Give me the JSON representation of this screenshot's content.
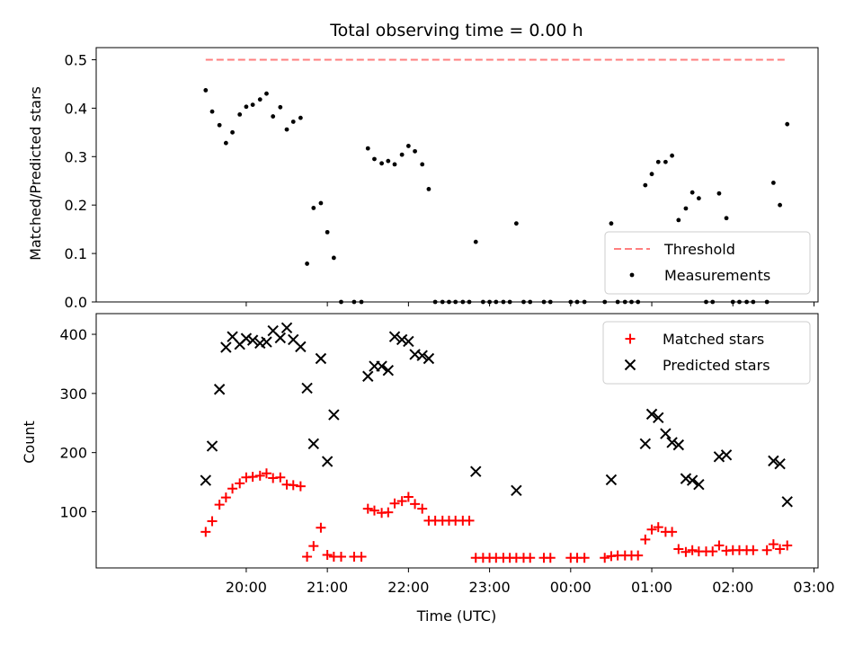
{
  "chart_data": [
    {
      "type": "scatter",
      "title": "Total observing time = 0.00 h",
      "xlabel": "",
      "ylabel": "Matched/Predicted stars",
      "x_unit": "hours after 19:00 UTC",
      "xlim": [
        -0.85,
        8.05
      ],
      "ylim": [
        0,
        0.525
      ],
      "yticks": [
        0.0,
        0.1,
        0.2,
        0.3,
        0.4,
        0.5
      ],
      "ytick_labels": [
        "0.0",
        "0.1",
        "0.2",
        "0.3",
        "0.4",
        "0.5"
      ],
      "legend": {
        "position": "lower-right",
        "entries": [
          "Threshold",
          "Measurements"
        ]
      },
      "threshold": {
        "name": "Threshold",
        "y": 0.5,
        "x_range": [
          0.5,
          7.67
        ],
        "color": "#ff7f7f"
      },
      "series": [
        {
          "name": "Measurements",
          "color": "#000000",
          "points": [
            [
              0.5,
              0.437
            ],
            [
              0.58,
              0.393
            ],
            [
              0.67,
              0.365
            ],
            [
              0.75,
              0.328
            ],
            [
              0.83,
              0.35
            ],
            [
              0.92,
              0.387
            ],
            [
              1.0,
              0.403
            ],
            [
              1.08,
              0.407
            ],
            [
              1.17,
              0.418
            ],
            [
              1.25,
              0.43
            ],
            [
              1.33,
              0.383
            ],
            [
              1.42,
              0.402
            ],
            [
              1.5,
              0.356
            ],
            [
              1.58,
              0.372
            ],
            [
              1.67,
              0.38
            ],
            [
              1.75,
              0.079
            ],
            [
              1.83,
              0.194
            ],
            [
              1.92,
              0.204
            ],
            [
              2.0,
              0.144
            ],
            [
              2.08,
              0.091
            ],
            [
              2.17,
              0.0
            ],
            [
              2.33,
              0.0
            ],
            [
              2.42,
              0.0
            ],
            [
              2.5,
              0.317
            ],
            [
              2.58,
              0.295
            ],
            [
              2.67,
              0.286
            ],
            [
              2.75,
              0.291
            ],
            [
              2.83,
              0.284
            ],
            [
              2.92,
              0.304
            ],
            [
              3.0,
              0.322
            ],
            [
              3.08,
              0.311
            ],
            [
              3.17,
              0.284
            ],
            [
              3.25,
              0.233
            ],
            [
              3.33,
              0.0
            ],
            [
              3.42,
              0.0
            ],
            [
              3.5,
              0.0
            ],
            [
              3.58,
              0.0
            ],
            [
              3.67,
              0.0
            ],
            [
              3.75,
              0.0
            ],
            [
              3.83,
              0.124
            ],
            [
              3.92,
              0.0
            ],
            [
              4.0,
              0.0
            ],
            [
              4.08,
              0.0
            ],
            [
              4.17,
              0.0
            ],
            [
              4.25,
              0.0
            ],
            [
              4.33,
              0.162
            ],
            [
              4.42,
              0.0
            ],
            [
              4.5,
              0.0
            ],
            [
              4.67,
              0.0
            ],
            [
              4.75,
              0.0
            ],
            [
              5.0,
              0.0
            ],
            [
              5.08,
              0.0
            ],
            [
              5.17,
              0.0
            ],
            [
              5.42,
              0.0
            ],
            [
              5.5,
              0.162
            ],
            [
              5.58,
              0.0
            ],
            [
              5.67,
              0.0
            ],
            [
              5.75,
              0.0
            ],
            [
              5.83,
              0.0
            ],
            [
              5.92,
              0.241
            ],
            [
              6.0,
              0.264
            ],
            [
              6.08,
              0.289
            ],
            [
              6.17,
              0.289
            ],
            [
              6.25,
              0.302
            ],
            [
              6.33,
              0.169
            ],
            [
              6.42,
              0.193
            ],
            [
              6.5,
              0.226
            ],
            [
              6.58,
              0.214
            ],
            [
              6.67,
              0.0
            ],
            [
              6.75,
              0.0
            ],
            [
              6.83,
              0.224
            ],
            [
              6.92,
              0.173
            ],
            [
              7.0,
              0.0
            ],
            [
              7.08,
              0.0
            ],
            [
              7.17,
              0.0
            ],
            [
              7.25,
              0.0
            ],
            [
              7.42,
              0.0
            ],
            [
              7.5,
              0.246
            ],
            [
              7.58,
              0.2
            ],
            [
              7.67,
              0.367
            ]
          ]
        }
      ]
    },
    {
      "type": "scatter",
      "title": "",
      "xlabel": "Time (UTC)",
      "ylabel": "Count",
      "x_unit": "hours after 19:00 UTC",
      "xlim": [
        -0.85,
        8.05
      ],
      "ylim": [
        5,
        435
      ],
      "yticks": [
        100,
        200,
        300,
        400
      ],
      "ytick_labels": [
        "100",
        "200",
        "300",
        "400"
      ],
      "xticks": [
        1,
        2,
        3,
        4,
        5,
        6,
        7,
        8
      ],
      "xtick_labels": [
        "20:00",
        "21:00",
        "22:00",
        "23:00",
        "00:00",
        "01:00",
        "02:00",
        "03:00"
      ],
      "legend": {
        "position": "top-right",
        "entries": [
          "Matched stars",
          "Predicted stars"
        ]
      },
      "series": [
        {
          "name": "Matched stars",
          "marker": "plus",
          "color": "#ff0000",
          "points": [
            [
              0.5,
              66
            ],
            [
              0.58,
              84
            ],
            [
              0.67,
              112
            ],
            [
              0.75,
              124
            ],
            [
              0.83,
              139
            ],
            [
              0.92,
              148
            ],
            [
              1.0,
              158
            ],
            [
              1.08,
              159
            ],
            [
              1.17,
              161
            ],
            [
              1.25,
              165
            ],
            [
              1.33,
              157
            ],
            [
              1.42,
              158
            ],
            [
              1.5,
              146
            ],
            [
              1.58,
              145
            ],
            [
              1.67,
              143
            ],
            [
              1.75,
              24
            ],
            [
              1.83,
              42
            ],
            [
              1.92,
              73
            ],
            [
              2.0,
              27
            ],
            [
              2.08,
              24
            ],
            [
              2.17,
              24
            ],
            [
              2.33,
              24
            ],
            [
              2.42,
              24
            ],
            [
              2.5,
              105
            ],
            [
              2.58,
              102
            ],
            [
              2.67,
              98
            ],
            [
              2.75,
              99
            ],
            [
              2.83,
              114
            ],
            [
              2.92,
              118
            ],
            [
              3.0,
              125
            ],
            [
              3.08,
              113
            ],
            [
              3.17,
              105
            ],
            [
              3.25,
              85
            ],
            [
              3.33,
              85
            ],
            [
              3.42,
              85
            ],
            [
              3.5,
              85
            ],
            [
              3.58,
              85
            ],
            [
              3.67,
              85
            ],
            [
              3.75,
              85
            ],
            [
              3.83,
              22
            ],
            [
              3.92,
              22
            ],
            [
              4.0,
              22
            ],
            [
              4.08,
              22
            ],
            [
              4.17,
              22
            ],
            [
              4.25,
              22
            ],
            [
              4.33,
              22
            ],
            [
              4.42,
              22
            ],
            [
              4.5,
              22
            ],
            [
              4.67,
              22
            ],
            [
              4.75,
              22
            ],
            [
              5.0,
              22
            ],
            [
              5.08,
              22
            ],
            [
              5.17,
              22
            ],
            [
              5.42,
              22
            ],
            [
              5.5,
              25
            ],
            [
              5.58,
              26
            ],
            [
              5.67,
              26
            ],
            [
              5.75,
              26
            ],
            [
              5.83,
              26
            ],
            [
              5.92,
              53
            ],
            [
              6.0,
              70
            ],
            [
              6.08,
              74
            ],
            [
              6.17,
              66
            ],
            [
              6.25,
              66
            ],
            [
              6.33,
              37
            ],
            [
              6.42,
              32
            ],
            [
              6.5,
              35
            ],
            [
              6.58,
              33
            ],
            [
              6.67,
              33
            ],
            [
              6.75,
              33
            ],
            [
              6.83,
              43
            ],
            [
              6.92,
              34
            ],
            [
              7.0,
              35
            ],
            [
              7.08,
              35
            ],
            [
              7.17,
              35
            ],
            [
              7.25,
              35
            ],
            [
              7.42,
              35
            ],
            [
              7.5,
              45
            ],
            [
              7.58,
              37
            ],
            [
              7.67,
              43
            ]
          ]
        },
        {
          "name": "Predicted stars",
          "marker": "x",
          "color": "#000000",
          "points": [
            [
              0.5,
              153
            ],
            [
              0.58,
              211
            ],
            [
              0.67,
              307
            ],
            [
              0.75,
              378
            ],
            [
              0.83,
              396
            ],
            [
              0.92,
              383
            ],
            [
              1.0,
              393
            ],
            [
              1.08,
              390
            ],
            [
              1.17,
              385
            ],
            [
              1.25,
              387
            ],
            [
              1.33,
              406
            ],
            [
              1.42,
              394
            ],
            [
              1.5,
              411
            ],
            [
              1.58,
              391
            ],
            [
              1.67,
              379
            ],
            [
              1.75,
              309
            ],
            [
              1.83,
              215
            ],
            [
              1.92,
              359
            ],
            [
              2.0,
              185
            ],
            [
              2.08,
              264
            ],
            [
              2.5,
              329
            ],
            [
              2.58,
              346
            ],
            [
              2.67,
              346
            ],
            [
              2.75,
              339
            ],
            [
              2.83,
              396
            ],
            [
              2.92,
              391
            ],
            [
              3.0,
              388
            ],
            [
              3.08,
              366
            ],
            [
              3.17,
              364
            ],
            [
              3.25,
              359
            ],
            [
              3.83,
              168
            ],
            [
              4.33,
              136
            ],
            [
              5.5,
              154
            ],
            [
              5.92,
              215
            ],
            [
              6.0,
              265
            ],
            [
              6.08,
              259
            ],
            [
              6.17,
              232
            ],
            [
              6.25,
              217
            ],
            [
              6.33,
              213
            ],
            [
              6.42,
              156
            ],
            [
              6.5,
              153
            ],
            [
              6.58,
              146
            ],
            [
              6.83,
              193
            ],
            [
              6.92,
              196
            ],
            [
              7.5,
              186
            ],
            [
              7.58,
              181
            ],
            [
              7.67,
              117
            ]
          ]
        }
      ]
    }
  ]
}
